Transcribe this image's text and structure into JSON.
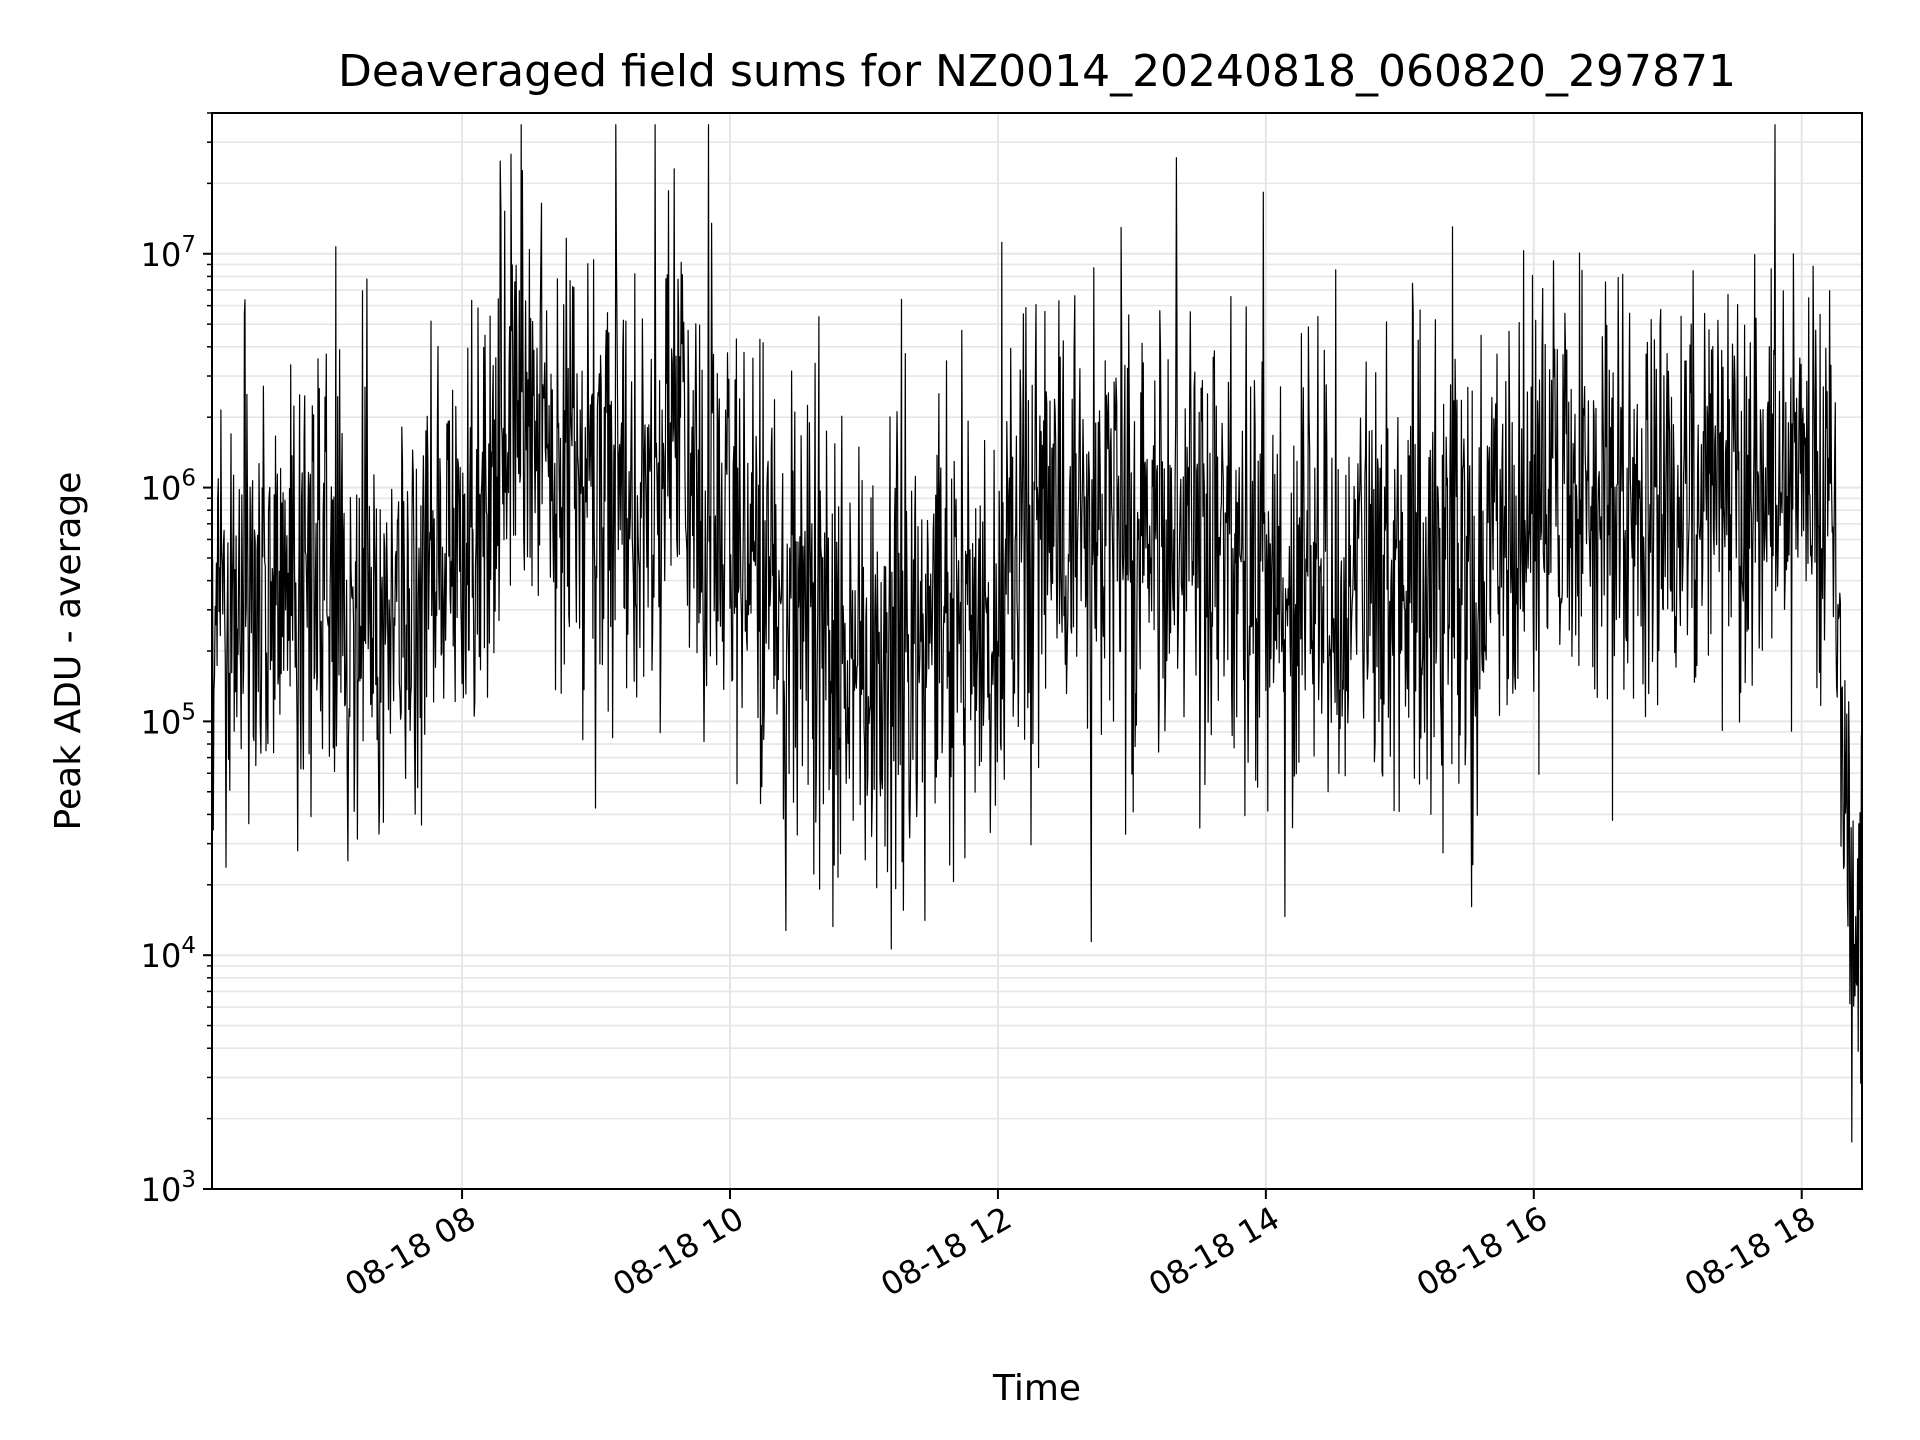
{
  "chart_data": {
    "type": "line",
    "title": "Deaveraged field sums for NZ0014_20240818_060820_297871",
    "xlabel": "Time",
    "ylabel": "Peak ADU - average",
    "yscale": "log",
    "ylim": [
      1000,
      40000000
    ],
    "xlim": [
      "2024-08-18 06:08",
      "2024-08-18 18:27"
    ],
    "grid": true,
    "line_color": "#000000",
    "grid_color": "#e6e6e6",
    "x_ticks": [
      {
        "value": "2024-08-18 08:00",
        "label": "08-18 08"
      },
      {
        "value": "2024-08-18 10:00",
        "label": "08-18 10"
      },
      {
        "value": "2024-08-18 12:00",
        "label": "08-18 12"
      },
      {
        "value": "2024-08-18 14:00",
        "label": "08-18 14"
      },
      {
        "value": "2024-08-18 16:00",
        "label": "08-18 16"
      },
      {
        "value": "2024-08-18 18:00",
        "label": "08-18 18"
      }
    ],
    "y_ticks": [
      {
        "value": 1000,
        "base": "10",
        "exp": "3"
      },
      {
        "value": 10000,
        "base": "10",
        "exp": "4"
      },
      {
        "value": 100000,
        "base": "10",
        "exp": "5"
      },
      {
        "value": 1000000,
        "base": "10",
        "exp": "6"
      },
      {
        "value": 10000000,
        "base": "10",
        "exp": "7"
      }
    ],
    "series": [
      {
        "x": [
          "2024-08-18 06:08",
          "2024-08-18 06:30",
          "2024-08-18 06:50",
          "2024-08-18 07:10",
          "2024-08-18 07:30",
          "2024-08-18 07:50",
          "2024-08-18 08:10",
          "2024-08-18 08:25",
          "2024-08-18 08:40",
          "2024-08-18 09:00",
          "2024-08-18 09:20",
          "2024-08-18 09:35",
          "2024-08-18 09:50",
          "2024-08-18 10:10",
          "2024-08-18 10:30",
          "2024-08-18 10:50",
          "2024-08-18 11:05",
          "2024-08-18 11:20",
          "2024-08-18 11:40",
          "2024-08-18 11:58",
          "2024-08-18 12:15",
          "2024-08-18 12:40",
          "2024-08-18 13:00",
          "2024-08-18 13:20",
          "2024-08-18 13:40",
          "2024-08-18 14:00",
          "2024-08-18 14:20",
          "2024-08-18 14:40",
          "2024-08-18 15:00",
          "2024-08-18 15:20",
          "2024-08-18 15:40",
          "2024-08-18 16:00",
          "2024-08-18 16:20",
          "2024-08-18 16:40",
          "2024-08-18 17:00",
          "2024-08-18 17:20",
          "2024-08-18 17:40",
          "2024-08-18 18:00",
          "2024-08-18 18:15",
          "2024-08-18 18:22",
          "2024-08-18 18:27"
        ],
        "y": [
          350000,
          320000,
          500000,
          350000,
          300000,
          500000,
          700000,
          2500000,
          1300000,
          900000,
          700000,
          2200000,
          600000,
          500000,
          300000,
          180000,
          150000,
          250000,
          300000,
          250000,
          700000,
          650000,
          600000,
          550000,
          500000,
          450000,
          400000,
          380000,
          420000,
          450000,
          400000,
          800000,
          1200000,
          900000,
          700000,
          1000000,
          900000,
          1100000,
          600000,
          10000,
          15000
        ]
      }
    ]
  }
}
